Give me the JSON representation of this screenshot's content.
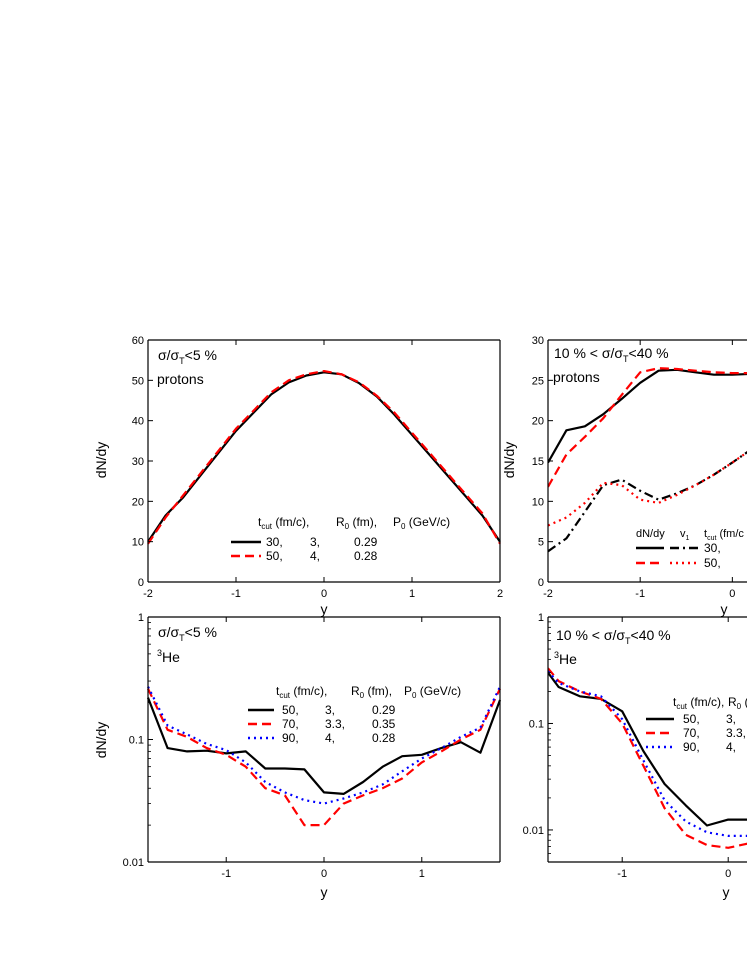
{
  "chart_data": [
    {
      "id": "tl",
      "type": "line",
      "annotations": [
        "σ/σ_T<5 %",
        "protons"
      ],
      "xlabel": "y",
      "ylabel": "dN/dy",
      "xlim": [
        -2,
        2
      ],
      "ylim": [
        0,
        60
      ],
      "yscale": "linear",
      "xticks": [
        -2,
        -1,
        0,
        1,
        2
      ],
      "xtick_labels": [
        "-2",
        "-1",
        "0",
        "1",
        "2"
      ],
      "yticks": [
        0,
        10,
        20,
        30,
        40,
        50,
        60
      ],
      "ytick_labels": [
        "0",
        "10",
        "20",
        "30",
        "40",
        "50",
        "60"
      ],
      "legend": {
        "header": [
          "t_cut (fm/c),",
          "R_0 (fm),",
          "P_0 (GeV/c)"
        ],
        "rows": [
          [
            "30,",
            "3,",
            "0.29"
          ],
          [
            "50,",
            "4,",
            "0.28"
          ]
        ]
      },
      "series": [
        {
          "style": "solid",
          "color": "#000000",
          "x": [
            -2,
            -1.8,
            -1.6,
            -1.4,
            -1.2,
            -1.0,
            -0.8,
            -0.6,
            -0.4,
            -0.2,
            0,
            0.2,
            0.4,
            0.6,
            0.8,
            1.0,
            1.2,
            1.4,
            1.6,
            1.8,
            2.0
          ],
          "y": [
            10,
            16.5,
            21,
            26.5,
            32,
            37.5,
            42,
            46.5,
            49.5,
            51.2,
            52,
            51.5,
            49.3,
            46,
            41.5,
            36.5,
            31.5,
            26.5,
            21.5,
            16.5,
            10
          ]
        },
        {
          "style": "dash",
          "color": "#ff0000",
          "x": [
            -2,
            -1.8,
            -1.6,
            -1.4,
            -1.2,
            -1.0,
            -0.8,
            -0.6,
            -0.4,
            -0.2,
            0,
            0.2,
            0.4,
            0.6,
            0.8,
            1.0,
            1.2,
            1.4,
            1.6,
            1.8,
            2.0
          ],
          "y": [
            9.5,
            16,
            21.5,
            27,
            32.5,
            38,
            42.5,
            47,
            50,
            51.5,
            52.3,
            51.5,
            49.5,
            46.2,
            42,
            37,
            32,
            27,
            22,
            17,
            9.5
          ]
        }
      ]
    },
    {
      "id": "tr",
      "type": "line",
      "annotations": [
        "10 % < σ/σ_T<40 %",
        "protons"
      ],
      "xlabel": "y",
      "ylabel": "dN/dy",
      "xlim": [
        -2,
        0.3
      ],
      "ylim": [
        0,
        30
      ],
      "yscale": "linear",
      "xticks": [
        -2,
        -1,
        0
      ],
      "xtick_labels": [
        "-2",
        "-1",
        "0"
      ],
      "yticks": [
        0,
        5,
        10,
        15,
        20,
        25,
        30
      ],
      "ytick_labels": [
        "0",
        "5",
        "10",
        "15",
        "20",
        "25",
        "30"
      ],
      "legend": {
        "header": [
          "dN/dy",
          "v_1",
          "t_cut (fm/c"
        ],
        "rows": [
          [
            "30,"
          ],
          [
            "50,"
          ]
        ]
      },
      "series": [
        {
          "style": "solid",
          "color": "#000000",
          "x": [
            -2,
            -1.8,
            -1.6,
            -1.4,
            -1.2,
            -1.0,
            -0.8,
            -0.6,
            -0.4,
            -0.2,
            0,
            0.2,
            0.3
          ],
          "y": [
            14.8,
            18.8,
            19.3,
            20.8,
            22.7,
            24.7,
            26.2,
            26.3,
            26.0,
            25.7,
            25.7,
            25.8,
            25.9
          ]
        },
        {
          "style": "dash",
          "color": "#ff0000",
          "x": [
            -2,
            -1.8,
            -1.6,
            -1.4,
            -1.2,
            -1.0,
            -0.8,
            -0.6,
            -0.4,
            -0.2,
            0,
            0.2,
            0.3
          ],
          "y": [
            11.8,
            15.8,
            18,
            20.3,
            23.2,
            26,
            26.5,
            26.4,
            26.2,
            26.0,
            25.9,
            25.9,
            25.9
          ]
        },
        {
          "style": "dashdot",
          "color": "#000000",
          "x": [
            -2,
            -1.8,
            -1.6,
            -1.4,
            -1.2,
            -1.0,
            -0.8,
            -0.6,
            -0.4,
            -0.2,
            0,
            0.2,
            0.3
          ],
          "y": [
            3.8,
            5.4,
            8.7,
            12,
            12.7,
            11.3,
            10.2,
            11,
            12,
            13.3,
            14.8,
            16.4,
            17.2
          ]
        },
        {
          "style": "dot",
          "color": "#ff0000",
          "x": [
            -2,
            -1.8,
            -1.6,
            -1.4,
            -1.2,
            -1.0,
            -0.8,
            -0.6,
            -0.4,
            -0.2,
            0,
            0.2,
            0.3
          ],
          "y": [
            7,
            8,
            9.8,
            12.3,
            12,
            10.2,
            9.8,
            10.8,
            12,
            13.3,
            14.8,
            16.4,
            17.2
          ]
        }
      ]
    },
    {
      "id": "bl",
      "type": "line",
      "annotations": [
        "σ/σ_T<5 %",
        "3He"
      ],
      "xlabel": "y",
      "ylabel": "dN/dy",
      "xlim": [
        -1.8,
        1.8
      ],
      "ylim": [
        0.01,
        1
      ],
      "yscale": "log",
      "xticks": [
        -1,
        0,
        1
      ],
      "xtick_labels": [
        "-1",
        "0",
        "1"
      ],
      "yticks": [
        0.01,
        0.1,
        1
      ],
      "ytick_labels": [
        "0.01",
        "0.1",
        "1"
      ],
      "legend": {
        "header": [
          "t_cut (fm/c),",
          "R_0 (fm),",
          "P_0 (GeV/c)"
        ],
        "rows": [
          [
            "50,",
            "3,",
            "0.29"
          ],
          [
            "70,",
            "3.3,",
            "0.35"
          ],
          [
            "90,",
            "4,",
            "0.28"
          ]
        ]
      },
      "series": [
        {
          "style": "solid",
          "color": "#000000",
          "x": [
            -1.8,
            -1.6,
            -1.4,
            -1.2,
            -1.0,
            -0.8,
            -0.6,
            -0.4,
            -0.2,
            0,
            0.2,
            0.4,
            0.6,
            0.8,
            1.0,
            1.2,
            1.4,
            1.6,
            1.8
          ],
          "y": [
            0.22,
            0.085,
            0.08,
            0.081,
            0.077,
            0.08,
            0.058,
            0.058,
            0.057,
            0.037,
            0.036,
            0.045,
            0.06,
            0.073,
            0.075,
            0.085,
            0.095,
            0.078,
            0.21
          ]
        },
        {
          "style": "dash",
          "color": "#ff0000",
          "x": [
            -1.8,
            -1.6,
            -1.4,
            -1.2,
            -1.0,
            -0.8,
            -0.6,
            -0.4,
            -0.2,
            0,
            0.2,
            0.4,
            0.6,
            0.8,
            1.0,
            1.2,
            1.4,
            1.6,
            1.8
          ],
          "y": [
            0.26,
            0.12,
            0.105,
            0.085,
            0.075,
            0.06,
            0.04,
            0.035,
            0.02,
            0.02,
            0.03,
            0.035,
            0.04,
            0.048,
            0.065,
            0.08,
            0.1,
            0.12,
            0.26
          ]
        },
        {
          "style": "dot",
          "color": "#0000ff",
          "x": [
            -1.8,
            -1.6,
            -1.4,
            -1.2,
            -1.0,
            -0.8,
            -0.6,
            -0.4,
            -0.2,
            0,
            0.2,
            0.4,
            0.6,
            0.8,
            1.0,
            1.2,
            1.4,
            1.6,
            1.8
          ],
          "y": [
            0.27,
            0.13,
            0.11,
            0.092,
            0.082,
            0.065,
            0.045,
            0.037,
            0.032,
            0.03,
            0.033,
            0.037,
            0.043,
            0.055,
            0.07,
            0.085,
            0.105,
            0.125,
            0.27
          ]
        }
      ]
    },
    {
      "id": "br",
      "type": "line",
      "annotations": [
        "10 % < σ/σ_T<40 %",
        "3He"
      ],
      "xlabel": "y",
      "ylabel": "",
      "xlim": [
        -1.7,
        0.3
      ],
      "ylim": [
        0.005,
        1
      ],
      "yscale": "log",
      "xticks": [
        -1,
        0
      ],
      "xtick_labels": [
        "-1",
        "0"
      ],
      "yticks": [
        0.01,
        0.1,
        1
      ],
      "ytick_labels": [
        "0.01",
        "0.1",
        "1"
      ],
      "legend": {
        "header": [
          "t_cut (fm/c),",
          "R_0 ("
        ],
        "rows": [
          [
            "50,",
            "3,"
          ],
          [
            "70,",
            "3.3,"
          ],
          [
            "90,",
            "4,"
          ]
        ]
      },
      "series": [
        {
          "style": "solid",
          "color": "#000000",
          "x": [
            -1.7,
            -1.6,
            -1.4,
            -1.2,
            -1.0,
            -0.8,
            -0.6,
            -0.4,
            -0.2,
            0,
            0.2,
            0.3
          ],
          "y": [
            0.3,
            0.22,
            0.18,
            0.17,
            0.13,
            0.055,
            0.027,
            0.017,
            0.011,
            0.0125,
            0.0125,
            0.013
          ]
        },
        {
          "style": "dash",
          "color": "#ff0000",
          "x": [
            -1.7,
            -1.6,
            -1.4,
            -1.2,
            -1.0,
            -0.8,
            -0.6,
            -0.4,
            -0.2,
            0,
            0.2,
            0.3
          ],
          "y": [
            0.33,
            0.25,
            0.2,
            0.17,
            0.1,
            0.04,
            0.016,
            0.009,
            0.0072,
            0.0068,
            0.0075,
            0.008
          ]
        },
        {
          "style": "dot",
          "color": "#0000ff",
          "x": [
            -1.7,
            -1.6,
            -1.4,
            -1.2,
            -1.0,
            -0.8,
            -0.6,
            -0.4,
            -0.2,
            0,
            0.2,
            0.3
          ],
          "y": [
            0.31,
            0.24,
            0.2,
            0.18,
            0.11,
            0.045,
            0.019,
            0.012,
            0.0095,
            0.0088,
            0.0088,
            0.009
          ]
        }
      ]
    }
  ]
}
